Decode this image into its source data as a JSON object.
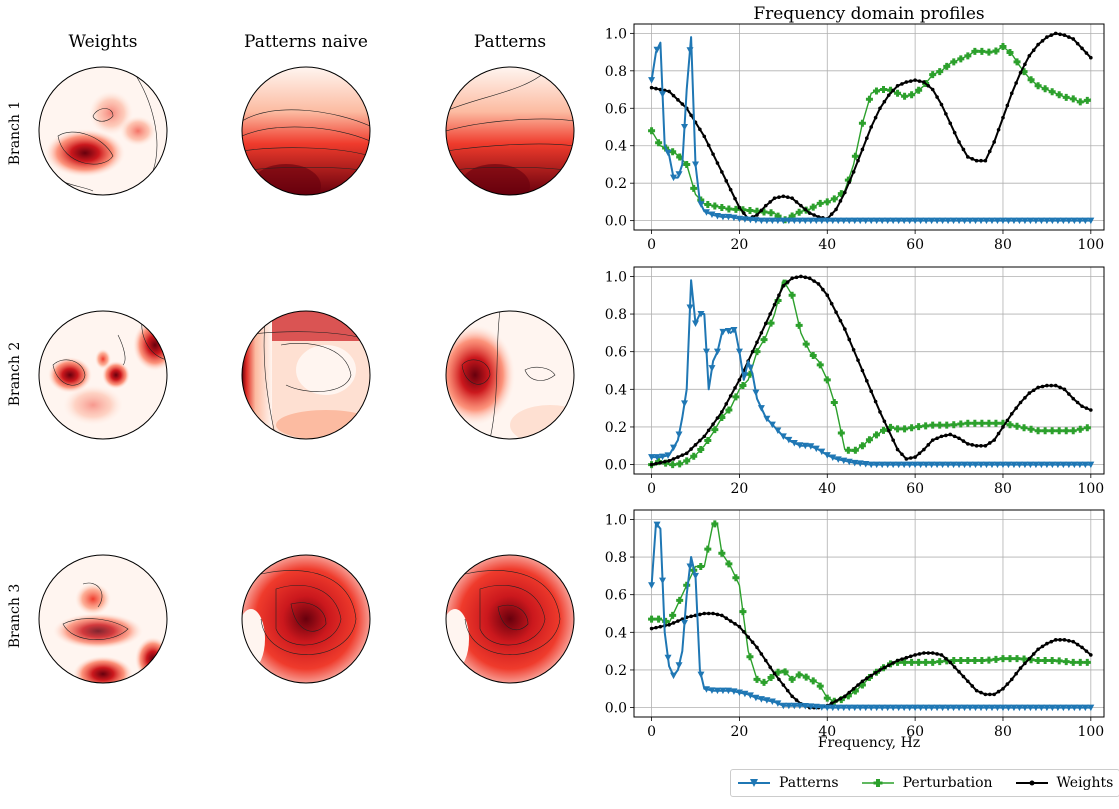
{
  "column_titles": [
    "Weights",
    "Patterns naive",
    "Patterns"
  ],
  "row_labels": [
    "Branch 1",
    "Branch 2",
    "Branch 3"
  ],
  "colors": {
    "patterns": "#1f77b4",
    "perturbation": "#2ca02c",
    "weights": "#000000",
    "grid": "#b0b0b0"
  },
  "legend": {
    "patterns": "Patterns",
    "perturbation": "Perturbation",
    "weights": "Weights"
  },
  "chart_data": [
    {
      "type": "line",
      "title": "Frequency domain profiles",
      "xlabel": "",
      "ylabel": "",
      "xlim": [
        -4,
        103
      ],
      "ylim": [
        -0.05,
        1.05
      ],
      "xticks": [
        "0",
        "20",
        "40",
        "60",
        "80",
        "100"
      ],
      "yticks": [
        "0.0",
        "0.2",
        "0.4",
        "0.6",
        "0.8",
        "1.0"
      ],
      "grid": true,
      "series": [
        {
          "name": "Patterns",
          "x": [
            0,
            1,
            2,
            3,
            4,
            5,
            6,
            7,
            8,
            9,
            10,
            11,
            12,
            14,
            16,
            18,
            20,
            25,
            30,
            40,
            50,
            60,
            70,
            80,
            90,
            100
          ],
          "y": [
            0.75,
            0.9,
            0.95,
            0.4,
            0.35,
            0.23,
            0.23,
            0.3,
            0.7,
            0.98,
            0.3,
            0.1,
            0.05,
            0.03,
            0.02,
            0.02,
            0.01,
            0.0,
            0.0,
            0.0,
            0.0,
            0.0,
            0.0,
            0.0,
            0.0,
            0.0
          ]
        },
        {
          "name": "Perturbation",
          "x": [
            0,
            2,
            4,
            6,
            8,
            10,
            12,
            14,
            16,
            18,
            20,
            24,
            28,
            30,
            34,
            36,
            38,
            40,
            42,
            44,
            46,
            48,
            50,
            52,
            54,
            56,
            58,
            60,
            62,
            64,
            66,
            68,
            70,
            72,
            74,
            76,
            78,
            80,
            82,
            84,
            86,
            88,
            90,
            92,
            94,
            96,
            98,
            100
          ],
          "y": [
            0.48,
            0.4,
            0.38,
            0.35,
            0.3,
            0.14,
            0.09,
            0.08,
            0.07,
            0.06,
            0.06,
            0.05,
            0.04,
            0.0,
            0.05,
            0.06,
            0.09,
            0.1,
            0.12,
            0.16,
            0.3,
            0.52,
            0.68,
            0.7,
            0.7,
            0.68,
            0.66,
            0.68,
            0.72,
            0.78,
            0.8,
            0.84,
            0.86,
            0.88,
            0.91,
            0.9,
            0.9,
            0.93,
            0.89,
            0.82,
            0.76,
            0.72,
            0.7,
            0.68,
            0.66,
            0.65,
            0.63,
            0.65
          ]
        },
        {
          "name": "Weights",
          "x": [
            0,
            4,
            8,
            12,
            16,
            20,
            22,
            24,
            26,
            28,
            30,
            32,
            34,
            36,
            38,
            40,
            42,
            44,
            46,
            48,
            50,
            52,
            54,
            56,
            58,
            60,
            62,
            64,
            66,
            68,
            70,
            72,
            74,
            76,
            78,
            80,
            82,
            84,
            86,
            88,
            90,
            92,
            94,
            96,
            98,
            100
          ],
          "y": [
            0.71,
            0.69,
            0.6,
            0.45,
            0.26,
            0.07,
            0.01,
            0.03,
            0.08,
            0.12,
            0.13,
            0.12,
            0.08,
            0.04,
            0.02,
            0.01,
            0.06,
            0.15,
            0.26,
            0.38,
            0.5,
            0.6,
            0.67,
            0.72,
            0.74,
            0.75,
            0.74,
            0.7,
            0.62,
            0.52,
            0.42,
            0.34,
            0.32,
            0.32,
            0.42,
            0.55,
            0.68,
            0.79,
            0.88,
            0.94,
            0.98,
            1.0,
            0.99,
            0.97,
            0.92,
            0.87
          ]
        }
      ]
    },
    {
      "type": "line",
      "title": "",
      "xlabel": "",
      "ylabel": "",
      "xlim": [
        -4,
        103
      ],
      "ylim": [
        -0.05,
        1.05
      ],
      "xticks": [
        "0",
        "20",
        "40",
        "60",
        "80",
        "100"
      ],
      "yticks": [
        "0.0",
        "0.2",
        "0.4",
        "0.6",
        "0.8",
        "1.0"
      ],
      "grid": true,
      "series": [
        {
          "name": "Patterns",
          "x": [
            0,
            2,
            4,
            6,
            7,
            8,
            9,
            10,
            11,
            12,
            13,
            14,
            15,
            16,
            17,
            18,
            19,
            20,
            21,
            22,
            23,
            24,
            25,
            26,
            28,
            30,
            32,
            34,
            36,
            38,
            40,
            42,
            44,
            46,
            50,
            60,
            70,
            80,
            90,
            100
          ],
          "y": [
            0.04,
            0.04,
            0.05,
            0.13,
            0.25,
            0.4,
            0.98,
            0.75,
            0.8,
            0.8,
            0.4,
            0.55,
            0.6,
            0.7,
            0.72,
            0.7,
            0.72,
            0.6,
            0.45,
            0.55,
            0.48,
            0.35,
            0.3,
            0.25,
            0.2,
            0.15,
            0.12,
            0.1,
            0.1,
            0.08,
            0.05,
            0.03,
            0.02,
            0.01,
            0.0,
            0.0,
            0.0,
            0.0,
            0.0,
            0.0
          ]
        },
        {
          "name": "Perturbation",
          "x": [
            0,
            2,
            4,
            6,
            8,
            10,
            12,
            14,
            16,
            18,
            20,
            22,
            24,
            26,
            28,
            30,
            32,
            34,
            36,
            38,
            40,
            42,
            44,
            46,
            48,
            50,
            52,
            54,
            56,
            58,
            60,
            64,
            68,
            72,
            76,
            80,
            84,
            88,
            92,
            96,
            100
          ],
          "y": [
            0.0,
            0.02,
            0.0,
            0.0,
            0.02,
            0.05,
            0.1,
            0.17,
            0.25,
            0.3,
            0.4,
            0.45,
            0.6,
            0.68,
            0.8,
            0.98,
            0.9,
            0.7,
            0.6,
            0.55,
            0.45,
            0.3,
            0.08,
            0.07,
            0.1,
            0.14,
            0.17,
            0.2,
            0.19,
            0.19,
            0.2,
            0.21,
            0.21,
            0.22,
            0.22,
            0.22,
            0.2,
            0.18,
            0.18,
            0.18,
            0.2
          ]
        },
        {
          "name": "Weights",
          "x": [
            0,
            4,
            8,
            12,
            16,
            20,
            24,
            28,
            30,
            32,
            34,
            36,
            38,
            40,
            44,
            48,
            52,
            56,
            58,
            60,
            62,
            64,
            66,
            68,
            70,
            72,
            74,
            76,
            78,
            80,
            82,
            84,
            86,
            88,
            90,
            92,
            94,
            96,
            98,
            100
          ],
          "y": [
            0.0,
            0.02,
            0.06,
            0.15,
            0.28,
            0.45,
            0.65,
            0.85,
            0.95,
            0.99,
            1.0,
            0.99,
            0.96,
            0.9,
            0.72,
            0.5,
            0.28,
            0.08,
            0.03,
            0.04,
            0.08,
            0.13,
            0.15,
            0.16,
            0.14,
            0.11,
            0.1,
            0.1,
            0.13,
            0.2,
            0.27,
            0.33,
            0.38,
            0.41,
            0.42,
            0.42,
            0.4,
            0.35,
            0.31,
            0.29
          ]
        }
      ]
    },
    {
      "type": "line",
      "title": "",
      "xlabel": "Frequency, Hz",
      "ylabel": "",
      "xlim": [
        -4,
        103
      ],
      "ylim": [
        -0.05,
        1.05
      ],
      "xticks": [
        "0",
        "20",
        "40",
        "60",
        "80",
        "100"
      ],
      "yticks": [
        "0.0",
        "0.2",
        "0.4",
        "0.6",
        "0.8",
        "1.0"
      ],
      "grid": true,
      "series": [
        {
          "name": "Patterns",
          "x": [
            0,
            1,
            2,
            3,
            4,
            5,
            6,
            7,
            8,
            9,
            10,
            11,
            12,
            14,
            16,
            18,
            20,
            22,
            24,
            26,
            28,
            30,
            34,
            40,
            50,
            60,
            70,
            80,
            90,
            100
          ],
          "y": [
            0.65,
            0.98,
            0.95,
            0.4,
            0.22,
            0.17,
            0.2,
            0.3,
            0.6,
            0.8,
            0.7,
            0.2,
            0.1,
            0.09,
            0.09,
            0.09,
            0.08,
            0.07,
            0.05,
            0.04,
            0.03,
            0.01,
            0.01,
            0.0,
            0.0,
            0.0,
            0.0,
            0.0,
            0.0,
            0.0
          ]
        },
        {
          "name": "Perturbation",
          "x": [
            0,
            2,
            4,
            6,
            8,
            10,
            12,
            14,
            15,
            16,
            18,
            20,
            22,
            24,
            26,
            28,
            30,
            32,
            34,
            36,
            38,
            40,
            42,
            44,
            46,
            48,
            50,
            52,
            54,
            56,
            58,
            60,
            64,
            68,
            72,
            76,
            80,
            84,
            88,
            92,
            96,
            100
          ],
          "y": [
            0.47,
            0.47,
            0.45,
            0.55,
            0.65,
            0.75,
            0.75,
            0.98,
            0.97,
            0.82,
            0.75,
            0.65,
            0.3,
            0.15,
            0.13,
            0.18,
            0.2,
            0.15,
            0.18,
            0.15,
            0.13,
            0.05,
            0.03,
            0.05,
            0.08,
            0.12,
            0.17,
            0.2,
            0.23,
            0.24,
            0.24,
            0.24,
            0.24,
            0.25,
            0.25,
            0.25,
            0.26,
            0.26,
            0.25,
            0.25,
            0.24,
            0.24
          ]
        },
        {
          "name": "Weights",
          "x": [
            0,
            4,
            8,
            12,
            14,
            16,
            20,
            24,
            28,
            32,
            34,
            36,
            38,
            40,
            44,
            48,
            52,
            56,
            60,
            62,
            64,
            66,
            68,
            70,
            72,
            74,
            76,
            78,
            80,
            82,
            84,
            86,
            88,
            90,
            92,
            94,
            96,
            98,
            100
          ],
          "y": [
            0.42,
            0.44,
            0.48,
            0.5,
            0.5,
            0.49,
            0.43,
            0.32,
            0.18,
            0.06,
            0.02,
            0.0,
            0.0,
            0.01,
            0.06,
            0.14,
            0.2,
            0.25,
            0.28,
            0.29,
            0.29,
            0.28,
            0.24,
            0.19,
            0.14,
            0.09,
            0.07,
            0.07,
            0.1,
            0.15,
            0.21,
            0.26,
            0.31,
            0.34,
            0.36,
            0.36,
            0.35,
            0.32,
            0.28
          ]
        }
      ]
    }
  ]
}
